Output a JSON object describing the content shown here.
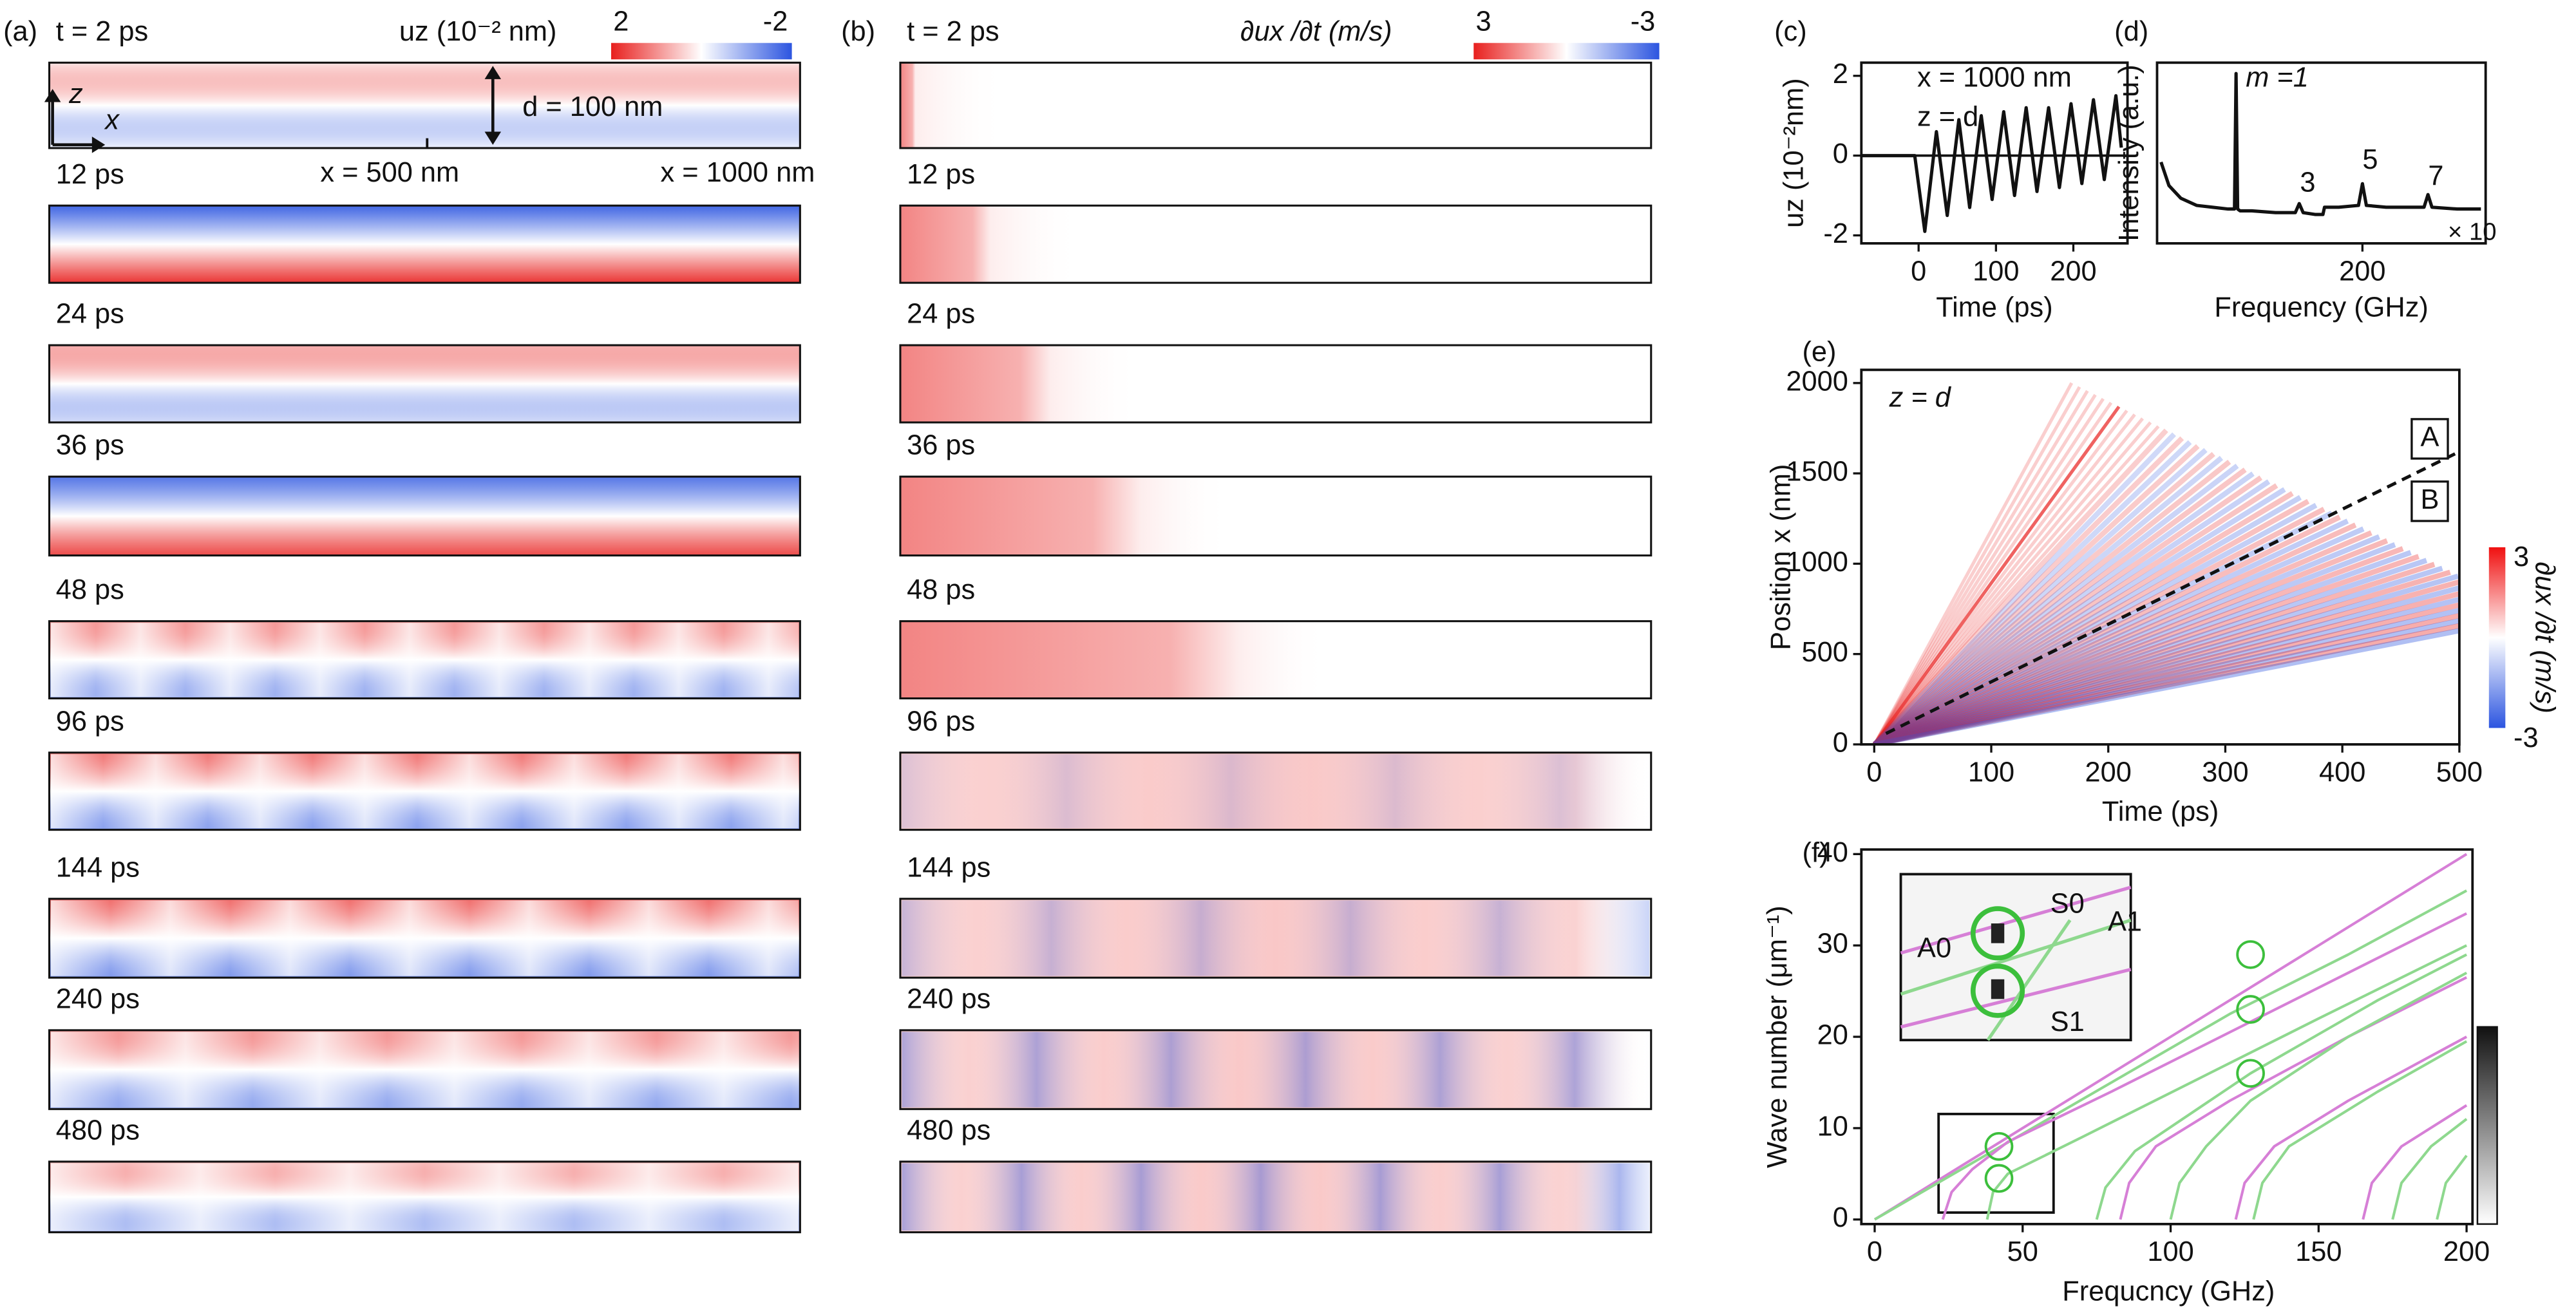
{
  "figure": {
    "panel_labels": [
      "(a)",
      "(b)",
      "(c)",
      "(d)",
      "(e)",
      "(f)"
    ],
    "a": {
      "time_labels": [
        "t = 2 ps",
        "12 ps",
        "24 ps",
        "36 ps",
        "48 ps",
        "96 ps",
        "144 ps",
        "240 ps",
        "480 ps"
      ],
      "colorbar_label": "uz (10⁻² nm)",
      "colorbar_ticks": [
        2,
        -2
      ],
      "annotations": [
        "z",
        "x",
        "d = 100 nm",
        "x = 500 nm",
        "x = 1000 nm"
      ]
    },
    "b": {
      "time_labels": [
        "t = 2 ps",
        "12 ps",
        "24 ps",
        "36 ps",
        "48 ps",
        "96 ps",
        "144 ps",
        "240 ps",
        "480 ps"
      ],
      "colorbar_label": "∂ux /∂t (m/s)",
      "colorbar_ticks": [
        3,
        -3
      ]
    }
  },
  "chart_data": [
    {
      "type": "line",
      "xlabel": "Time (ps)",
      "ylabel": "uz (10⁻²nm)",
      "annotations": [
        "x = 1000 nm",
        "z = d"
      ],
      "x": [
        -74,
        -5,
        8,
        23,
        37,
        52,
        66,
        81,
        95,
        110,
        124,
        139,
        153,
        168,
        182,
        197,
        211,
        226,
        240,
        255,
        262
      ],
      "series": [
        {
          "color": "#111111",
          "values": [
            0,
            0,
            -1.9,
            0.6,
            -1.5,
            0.9,
            -1.3,
            1.0,
            -1.1,
            1.1,
            -1.0,
            1.2,
            -0.9,
            1.2,
            -0.8,
            1.3,
            -0.7,
            1.4,
            -0.6,
            1.5,
            0.2
          ]
        }
      ],
      "xlim": [
        -74,
        270
      ],
      "ylim": [
        -2.2,
        2.33
      ],
      "xticks": [
        0,
        100,
        200
      ],
      "yticks": [
        -2,
        0,
        2
      ],
      "zero_line": true
    },
    {
      "type": "line",
      "xlabel": "Frequency (GHz)",
      "ylabel": "Intensity (a.u.)",
      "annotations": [
        "m =1",
        "3",
        "5",
        "7",
        "× 10"
      ],
      "x": [
        -55,
        -45,
        -30,
        -10,
        10,
        30,
        38,
        40,
        42,
        45,
        60,
        90,
        115,
        120,
        125,
        140,
        150,
        152,
        170,
        195,
        200,
        205,
        230,
        270,
        278,
        283,
        288,
        320,
        350
      ],
      "series": [
        {
          "color": "#111111",
          "values": [
            0.45,
            0.32,
            0.25,
            0.21,
            0.2,
            0.19,
            0.19,
            0.94,
            0.19,
            0.18,
            0.18,
            0.17,
            0.17,
            0.22,
            0.17,
            0.16,
            0.16,
            0.2,
            0.2,
            0.21,
            0.33,
            0.21,
            0.2,
            0.2,
            0.2,
            0.27,
            0.2,
            0.19,
            0.19
          ]
        }
      ],
      "xlim": [
        -60,
        356
      ],
      "ylim": [
        0,
        1
      ],
      "xticks": [
        200
      ],
      "yticks": []
    },
    {
      "type": "line",
      "xlabel": "Time (ps)",
      "ylabel": "Position x (nm)",
      "annotations": [
        "z = d",
        "A",
        "B"
      ],
      "x": [
        10,
        500
      ],
      "series": [
        {
          "color": "#111111",
          "dashed": true,
          "values": [
            60,
            1620
          ]
        }
      ],
      "xlim": [
        -11,
        500
      ],
      "ylim": [
        0,
        2073
      ],
      "xticks": [
        0,
        100,
        200,
        300,
        400,
        500
      ],
      "yticks": [
        0,
        500,
        1000,
        1500,
        2000
      ],
      "colorbar_label": "∂ux /∂t (m/s)",
      "colorbar_ticks": [
        3,
        -3
      ]
    },
    {
      "type": "line",
      "xlabel": "Frequcncy (GHz)",
      "ylabel": "Wave number (μm⁻¹)",
      "annotations": [
        "A0",
        "S0",
        "A1",
        "S1"
      ],
      "annotation_colors": [
        "#c25cc2",
        "#4fbf4f",
        "#c25cc2",
        "#4fbf4f"
      ],
      "series": [
        {
          "color": "#d67fd6",
          "x": [
            0,
            50,
            100,
            150,
            200
          ],
          "values": [
            0,
            10,
            20,
            30,
            40
          ]
        },
        {
          "color": "#8ed88e",
          "x": [
            0,
            40,
            80,
            120,
            160,
            200
          ],
          "values": [
            0,
            7.5,
            15,
            22.5,
            29,
            36
          ]
        },
        {
          "color": "#d67fd6",
          "x": [
            23,
            26,
            33,
            45,
            80,
            120,
            160,
            200
          ],
          "values": [
            0,
            3,
            5.5,
            8.5,
            14,
            20.5,
            27,
            33.5
          ]
        },
        {
          "color": "#8ed88e",
          "x": [
            38,
            40,
            45,
            70,
            110,
            150,
            200
          ],
          "values": [
            0,
            3,
            5,
            9,
            15.5,
            22,
            30
          ]
        },
        {
          "color": "#d67fd6",
          "x": [
            83,
            86,
            95,
            120,
            160,
            200
          ],
          "values": [
            0,
            4,
            8,
            13,
            20,
            26.5
          ]
        },
        {
          "color": "#8ed88e",
          "x": [
            75,
            78,
            88,
            127,
            170,
            200
          ],
          "values": [
            0,
            3.5,
            7.5,
            16,
            24,
            29
          ]
        },
        {
          "color": "#8ed88e",
          "x": [
            100,
            103,
            112,
            127,
            160,
            200
          ],
          "values": [
            0,
            4,
            8,
            13,
            20,
            27
          ]
        },
        {
          "color": "#d67fd6",
          "x": [
            122,
            125,
            135,
            160,
            200
          ],
          "values": [
            0,
            4,
            8,
            13,
            20
          ]
        },
        {
          "color": "#8ed88e",
          "x": [
            128,
            131,
            140,
            170,
            200
          ],
          "values": [
            0,
            4,
            8,
            14,
            19.5
          ]
        },
        {
          "color": "#d67fd6",
          "x": [
            165,
            168,
            178,
            200
          ],
          "values": [
            0,
            4,
            8,
            12.5
          ]
        },
        {
          "color": "#8ed88e",
          "x": [
            175,
            178,
            188,
            200
          ],
          "values": [
            0,
            4,
            8,
            11
          ]
        },
        {
          "color": "#8ed88e",
          "x": [
            190,
            193,
            200
          ],
          "values": [
            0,
            4,
            7
          ]
        },
        {
          "color": "#3cbf3c",
          "style": "circle",
          "x": [
            42,
            42,
            127,
            127,
            127
          ],
          "values": [
            8,
            4.5,
            29,
            23,
            16
          ]
        }
      ],
      "xlim": [
        -4.5,
        202
      ],
      "ylim": [
        -0.5,
        40.5
      ],
      "xticks": [
        0,
        50,
        100,
        150,
        200
      ],
      "yticks": [
        0,
        10,
        20,
        30,
        40
      ]
    }
  ]
}
